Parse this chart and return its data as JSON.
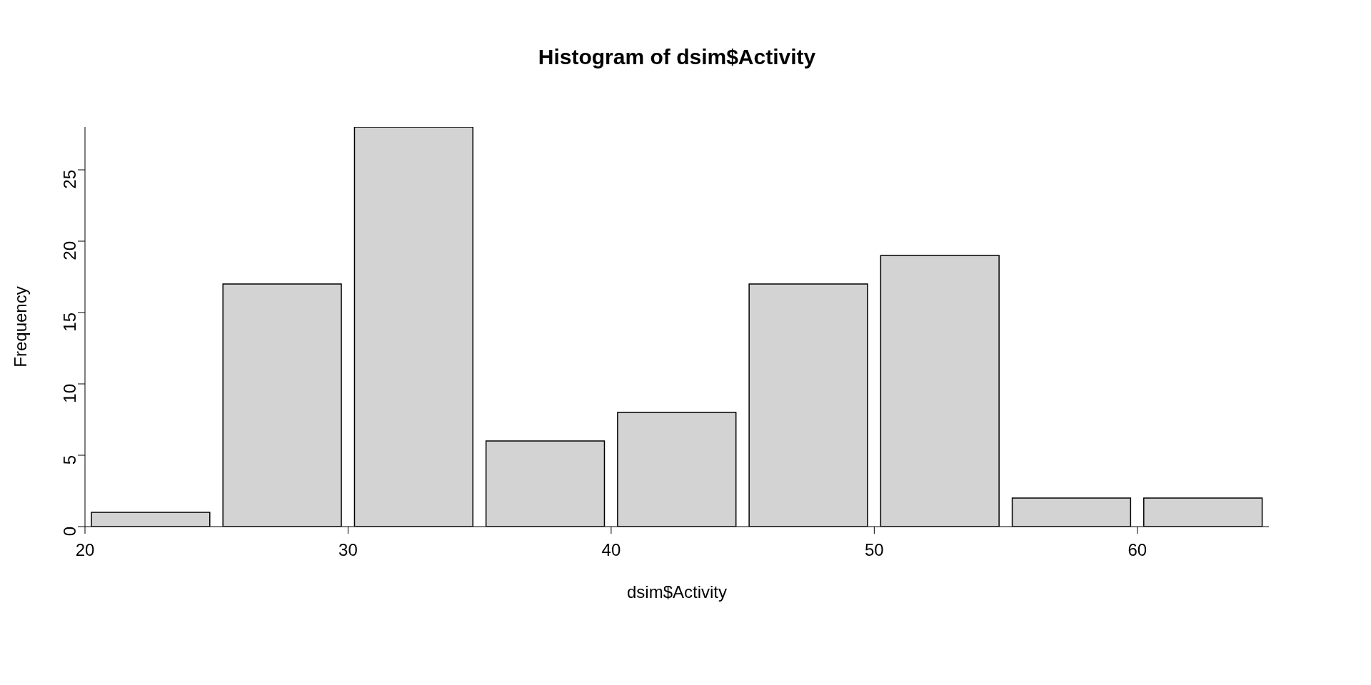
{
  "chart_data": {
    "type": "histogram",
    "title": "Histogram of dsim$Activity",
    "xlabel": "dsim$Activity",
    "ylabel": "Frequency",
    "bins": [
      20,
      25,
      30,
      35,
      40,
      45,
      50,
      55,
      60,
      65
    ],
    "values": [
      1,
      17,
      28,
      6,
      8,
      17,
      19,
      2,
      2
    ],
    "color": "#d3d3d3",
    "xlim": [
      20,
      65
    ],
    "xticks": [
      20,
      30,
      40,
      50,
      60
    ],
    "ylim": [
      0,
      28
    ],
    "yticks": [
      0,
      5,
      10,
      15,
      20,
      25
    ]
  }
}
